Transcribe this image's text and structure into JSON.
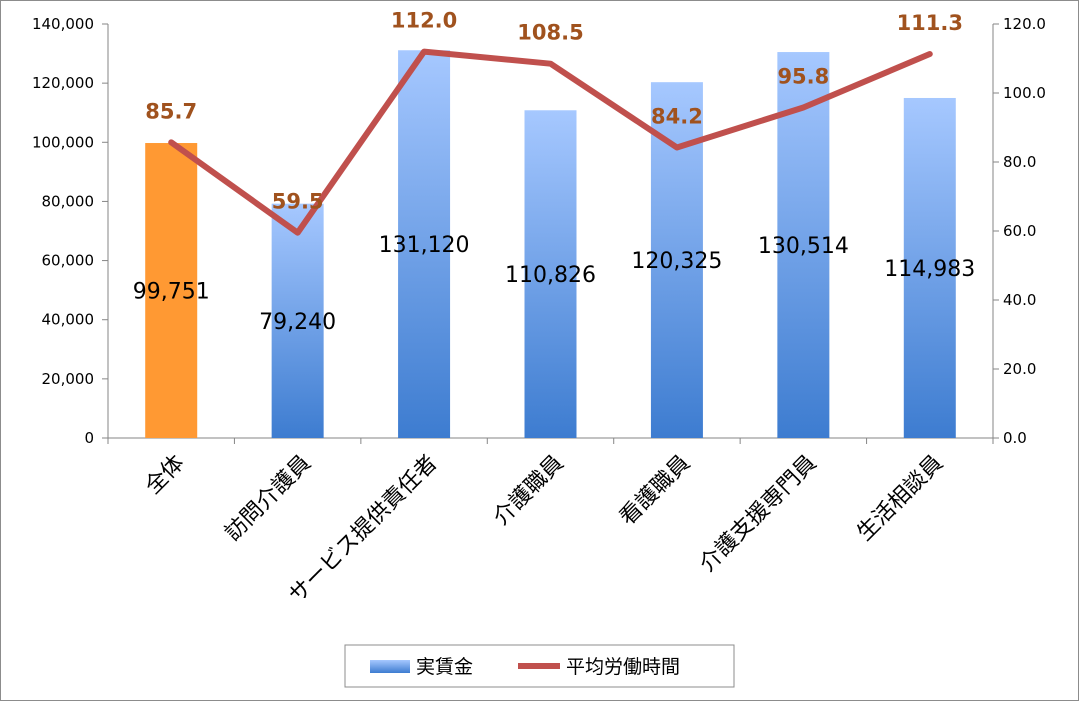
{
  "chart_data": {
    "type": "bar",
    "categories": [
      "全体",
      "訪問介護員",
      "サービス提供責任者",
      "介護職員",
      "看護職員",
      "介護支援専門員",
      "生活相談員"
    ],
    "series": [
      {
        "name": "実賃金",
        "type": "bar",
        "axis": "left",
        "values": [
          99751,
          79240,
          131120,
          110826,
          120325,
          130514,
          114983
        ],
        "labels": [
          "99,751",
          "79,240",
          "131,120",
          "110,826",
          "120,325",
          "130,514",
          "114,983"
        ],
        "color": "#5b8fd8",
        "highlight": {
          "index": 0,
          "color": "#ff9933"
        }
      },
      {
        "name": "平均労働時間",
        "type": "line",
        "axis": "right",
        "values": [
          85.7,
          59.5,
          112.0,
          108.5,
          84.2,
          95.8,
          111.3
        ],
        "labels": [
          "85.7",
          "59.5",
          "112.0",
          "108.5",
          "84.2",
          "95.8",
          "111.3"
        ],
        "color": "#c0504d",
        "label_color": "#a0521e"
      }
    ],
    "y_left": {
      "range": [
        0,
        140000
      ],
      "ticks": [
        0,
        20000,
        40000,
        60000,
        80000,
        100000,
        120000,
        140000
      ],
      "tick_labels": [
        "0",
        "20,000",
        "40,000",
        "60,000",
        "80,000",
        "100,000",
        "120,000",
        "140,000"
      ]
    },
    "y_right": {
      "range": [
        0,
        120
      ],
      "ticks": [
        0,
        20,
        40,
        60,
        80,
        100,
        120
      ],
      "tick_labels": [
        "0.0",
        "20.0",
        "40.0",
        "60.0",
        "80.0",
        "100.0",
        "120.0"
      ]
    },
    "grid": false,
    "legend": {
      "placement": "bottom-center"
    }
  }
}
